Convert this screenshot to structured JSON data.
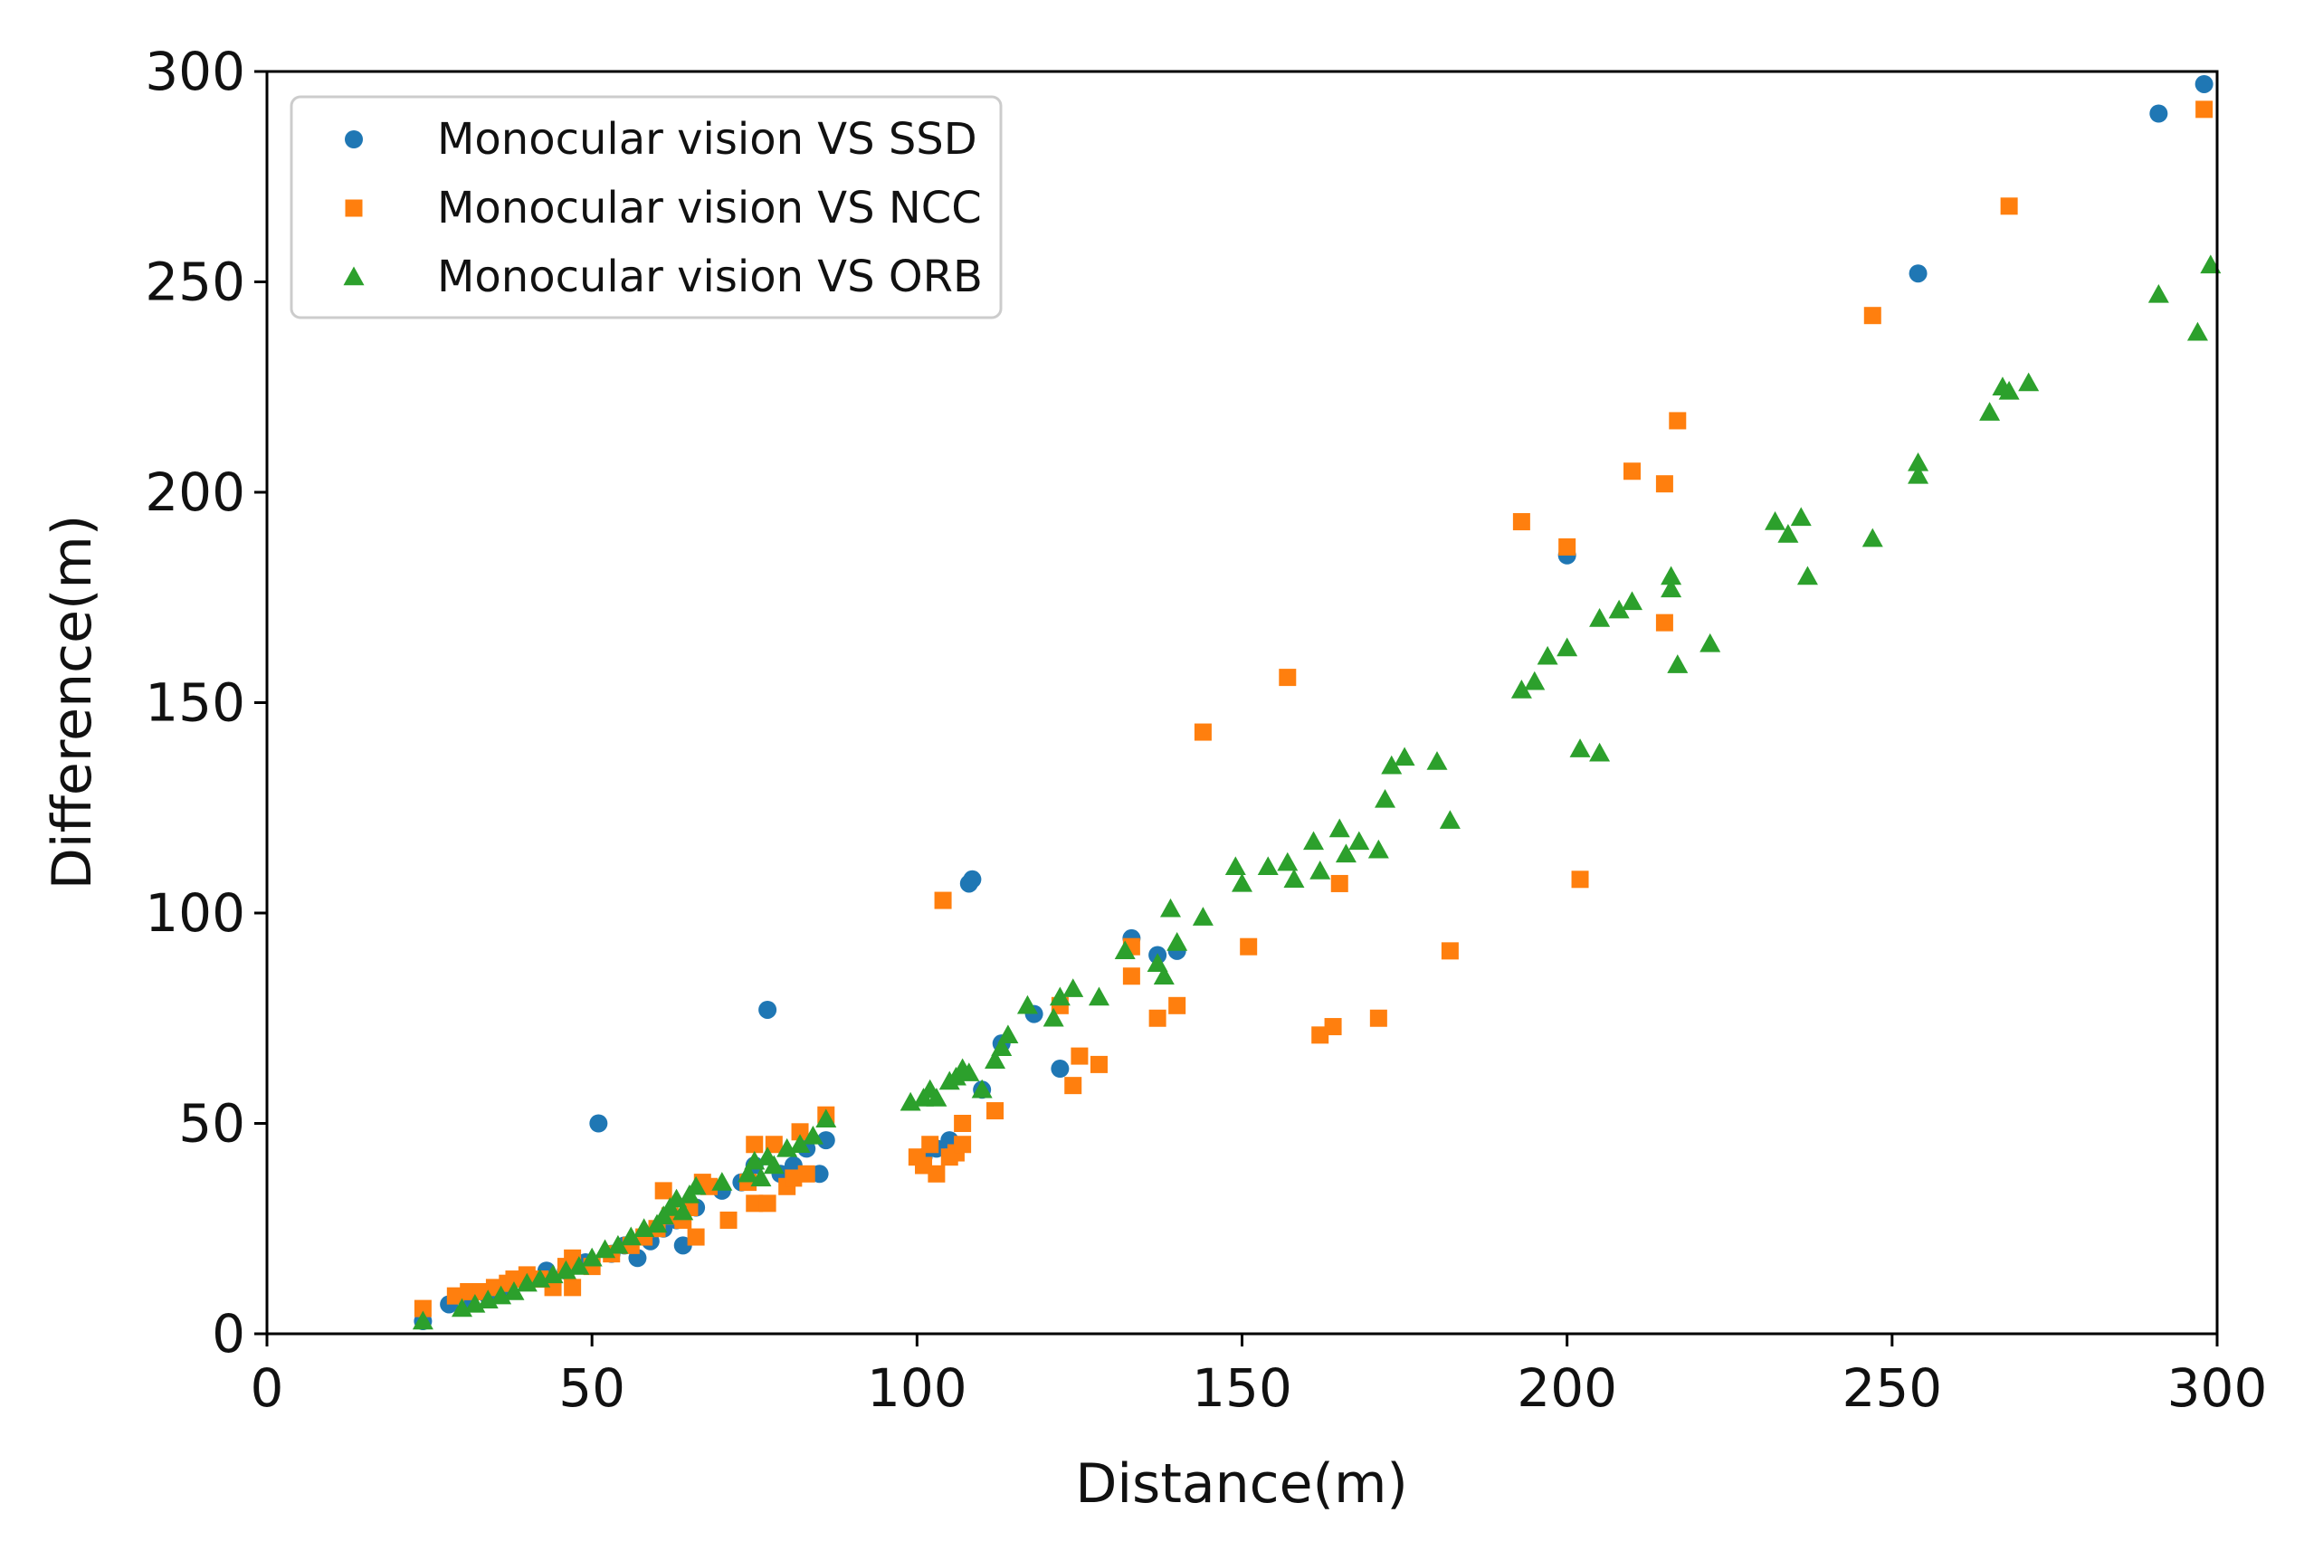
{
  "chart_data": {
    "type": "scatter",
    "title": "",
    "xlabel": "Distance(m)",
    "ylabel": "Difference(m)",
    "xlim": [
      0,
      300
    ],
    "ylim": [
      0,
      300
    ],
    "xticks": [
      0,
      50,
      100,
      150,
      200,
      250,
      300
    ],
    "yticks": [
      0,
      50,
      100,
      150,
      200,
      250,
      300
    ],
    "grid": false,
    "legend_position": "top-left",
    "series": [
      {
        "name": "Monocular vision VS SSD",
        "marker": "circle",
        "color": "#1f77b4",
        "points": [
          [
            24,
            3
          ],
          [
            28,
            7
          ],
          [
            31,
            8
          ],
          [
            34,
            9
          ],
          [
            37,
            11
          ],
          [
            40,
            13
          ],
          [
            43,
            15
          ],
          [
            46,
            15
          ],
          [
            49,
            17
          ],
          [
            51,
            50
          ],
          [
            53,
            19
          ],
          [
            55,
            21
          ],
          [
            57,
            18
          ],
          [
            59,
            22
          ],
          [
            61,
            25
          ],
          [
            63,
            27
          ],
          [
            64,
            21
          ],
          [
            66,
            30
          ],
          [
            70,
            34
          ],
          [
            73,
            36
          ],
          [
            75,
            40
          ],
          [
            77,
            77
          ],
          [
            79,
            38
          ],
          [
            81,
            40
          ],
          [
            83,
            44
          ],
          [
            85,
            38
          ],
          [
            86,
            46
          ],
          [
            101,
            42
          ],
          [
            103,
            44
          ],
          [
            105,
            46
          ],
          [
            108,
            107
          ],
          [
            108.5,
            108
          ],
          [
            110,
            58
          ],
          [
            113,
            69
          ],
          [
            118,
            76
          ],
          [
            122,
            63
          ],
          [
            133,
            94
          ],
          [
            137,
            90
          ],
          [
            140,
            91
          ],
          [
            200,
            185
          ],
          [
            254,
            252
          ],
          [
            291,
            290
          ],
          [
            298,
            297
          ]
        ]
      },
      {
        "name": "Monocular vision VS NCC",
        "marker": "square",
        "color": "#ff7f0e",
        "points": [
          [
            24,
            6
          ],
          [
            29,
            9
          ],
          [
            31,
            10
          ],
          [
            33,
            10
          ],
          [
            35,
            11
          ],
          [
            37,
            12
          ],
          [
            38,
            13
          ],
          [
            40,
            14
          ],
          [
            42,
            13
          ],
          [
            44,
            11
          ],
          [
            46,
            16
          ],
          [
            47,
            18
          ],
          [
            47,
            11
          ],
          [
            50,
            16
          ],
          [
            53,
            19
          ],
          [
            56,
            21
          ],
          [
            58,
            23
          ],
          [
            60,
            25
          ],
          [
            61,
            34
          ],
          [
            62,
            28
          ],
          [
            64,
            27
          ],
          [
            65,
            30
          ],
          [
            66,
            23
          ],
          [
            67,
            36
          ],
          [
            68,
            35
          ],
          [
            71,
            27
          ],
          [
            74,
            36
          ],
          [
            75,
            31
          ],
          [
            75,
            45
          ],
          [
            77,
            31
          ],
          [
            78,
            45
          ],
          [
            80,
            35
          ],
          [
            81,
            37
          ],
          [
            82,
            48
          ],
          [
            83,
            38
          ],
          [
            86,
            52
          ],
          [
            100,
            42
          ],
          [
            101,
            40
          ],
          [
            102,
            45
          ],
          [
            103,
            38
          ],
          [
            104,
            103
          ],
          [
            105,
            42
          ],
          [
            106,
            43
          ],
          [
            107,
            45
          ],
          [
            107,
            50
          ],
          [
            112,
            53
          ],
          [
            122,
            78
          ],
          [
            124,
            59
          ],
          [
            125,
            66
          ],
          [
            128,
            64
          ],
          [
            133,
            92
          ],
          [
            133,
            85
          ],
          [
            137,
            75
          ],
          [
            140,
            78
          ],
          [
            144,
            143
          ],
          [
            151,
            92
          ],
          [
            157,
            156
          ],
          [
            162,
            71
          ],
          [
            164,
            73
          ],
          [
            165,
            107
          ],
          [
            171,
            75
          ],
          [
            182,
            91
          ],
          [
            193,
            193
          ],
          [
            200,
            187
          ],
          [
            202,
            108
          ],
          [
            210,
            205
          ],
          [
            215,
            202
          ],
          [
            215,
            169
          ],
          [
            217,
            217
          ],
          [
            247,
            242
          ],
          [
            268,
            268
          ],
          [
            298,
            291
          ]
        ]
      },
      {
        "name": "Monocular vision VS ORB",
        "marker": "triangle",
        "color": "#2ca02c",
        "points": [
          [
            24,
            3
          ],
          [
            30,
            6
          ],
          [
            32,
            7
          ],
          [
            34,
            8
          ],
          [
            36,
            9
          ],
          [
            38,
            10
          ],
          [
            40,
            12
          ],
          [
            42,
            13
          ],
          [
            44,
            14
          ],
          [
            46,
            15
          ],
          [
            48,
            16
          ],
          [
            50,
            18
          ],
          [
            52,
            20
          ],
          [
            54,
            21
          ],
          [
            56,
            23
          ],
          [
            58,
            25
          ],
          [
            60,
            26
          ],
          [
            61,
            28
          ],
          [
            62,
            30
          ],
          [
            63,
            32
          ],
          [
            64,
            29
          ],
          [
            65,
            33
          ],
          [
            66,
            35
          ],
          [
            70,
            36
          ],
          [
            74,
            38
          ],
          [
            75,
            41
          ],
          [
            76,
            37
          ],
          [
            77,
            42
          ],
          [
            78,
            40
          ],
          [
            80,
            44
          ],
          [
            82,
            45
          ],
          [
            84,
            47
          ],
          [
            86,
            51
          ],
          [
            99,
            55
          ],
          [
            101,
            56
          ],
          [
            102,
            58
          ],
          [
            103,
            56
          ],
          [
            105,
            60
          ],
          [
            106,
            61
          ],
          [
            107,
            63
          ],
          [
            108,
            62
          ],
          [
            110,
            58
          ],
          [
            112,
            65
          ],
          [
            113,
            68
          ],
          [
            114,
            71
          ],
          [
            117,
            78
          ],
          [
            121,
            75
          ],
          [
            122,
            80
          ],
          [
            124,
            82
          ],
          [
            128,
            80
          ],
          [
            132,
            91
          ],
          [
            137,
            88
          ],
          [
            138,
            85
          ],
          [
            139,
            101
          ],
          [
            140,
            93
          ],
          [
            144,
            99
          ],
          [
            149,
            111
          ],
          [
            150,
            107
          ],
          [
            154,
            111
          ],
          [
            157,
            112
          ],
          [
            158,
            108
          ],
          [
            161,
            117
          ],
          [
            162,
            110
          ],
          [
            165,
            120
          ],
          [
            166,
            114
          ],
          [
            168,
            117
          ],
          [
            171,
            115
          ],
          [
            172,
            127
          ],
          [
            173,
            135
          ],
          [
            175,
            137
          ],
          [
            180,
            136
          ],
          [
            182,
            122
          ],
          [
            193,
            153
          ],
          [
            195,
            155
          ],
          [
            197,
            161
          ],
          [
            200,
            163
          ],
          [
            202,
            139
          ],
          [
            205,
            138
          ],
          [
            205,
            170
          ],
          [
            208,
            172
          ],
          [
            210,
            174
          ],
          [
            216,
            180
          ],
          [
            216,
            177
          ],
          [
            217,
            159
          ],
          [
            222,
            164
          ],
          [
            232,
            193
          ],
          [
            234,
            190
          ],
          [
            236,
            194
          ],
          [
            237,
            180
          ],
          [
            247,
            189
          ],
          [
            254,
            207
          ],
          [
            254,
            204
          ],
          [
            265,
            219
          ],
          [
            267,
            225
          ],
          [
            268,
            224
          ],
          [
            271,
            226
          ],
          [
            291,
            247
          ],
          [
            297,
            238
          ],
          [
            299,
            254
          ]
        ]
      }
    ]
  }
}
